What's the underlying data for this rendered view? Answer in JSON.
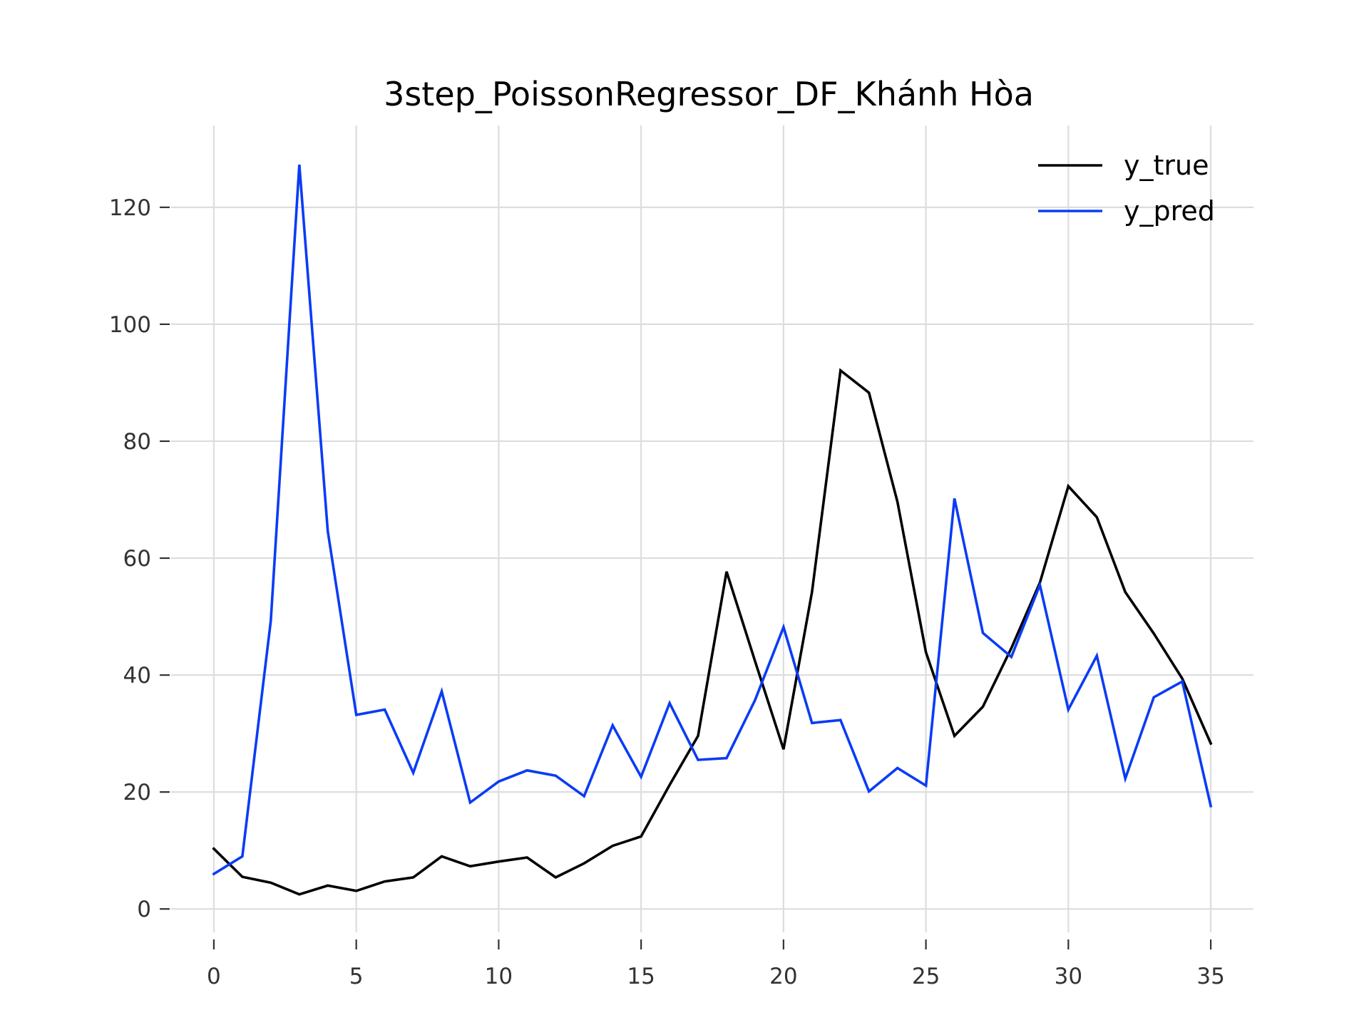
{
  "chart_data": {
    "type": "line",
    "title": "3step_PoissonRegressor_DF_Khánh Hòa",
    "xlabel": "",
    "ylabel": "",
    "xlim": [
      -1.5,
      36.5
    ],
    "ylim": [
      -4,
      134
    ],
    "x_ticks": [
      0,
      5,
      10,
      15,
      20,
      25,
      30,
      35
    ],
    "y_ticks": [
      0,
      20,
      40,
      60,
      80,
      100,
      120
    ],
    "grid": true,
    "legend_position": "top-right",
    "x": [
      0,
      1,
      2,
      3,
      4,
      5,
      6,
      7,
      8,
      9,
      10,
      11,
      12,
      13,
      14,
      15,
      16,
      17,
      18,
      19,
      20,
      21,
      22,
      23,
      24,
      25,
      26,
      27,
      28,
      29,
      30,
      31,
      32,
      33,
      34,
      35
    ],
    "series": [
      {
        "name": "y_true",
        "color": "#000000",
        "values": [
          10.3,
          5.5,
          4.5,
          2.5,
          4.0,
          3.1,
          4.7,
          5.4,
          9.0,
          7.3,
          8.1,
          8.8,
          5.4,
          7.8,
          10.8,
          12.4,
          21.2,
          29.6,
          57.7,
          42.4,
          27.3,
          54.2,
          92.1,
          88.3,
          69.6,
          43.9,
          29.6,
          34.6,
          44.6,
          55.8,
          72.3,
          67.0,
          54.2,
          47.1,
          39.4,
          28.3
        ]
      },
      {
        "name": "y_pred",
        "color": "#0a3cf5",
        "values": [
          6.0,
          9.0,
          49.3,
          127.3,
          64.6,
          33.2,
          34.1,
          23.3,
          37.2,
          18.2,
          21.8,
          23.7,
          22.8,
          19.3,
          31.4,
          22.6,
          35.2,
          25.5,
          25.8,
          35.7,
          48.2,
          31.8,
          32.3,
          20.1,
          24.1,
          21.1,
          70.2,
          47.2,
          43.1,
          55.4,
          34.1,
          43.3,
          22.3,
          36.2,
          38.9,
          17.6
        ]
      }
    ]
  }
}
